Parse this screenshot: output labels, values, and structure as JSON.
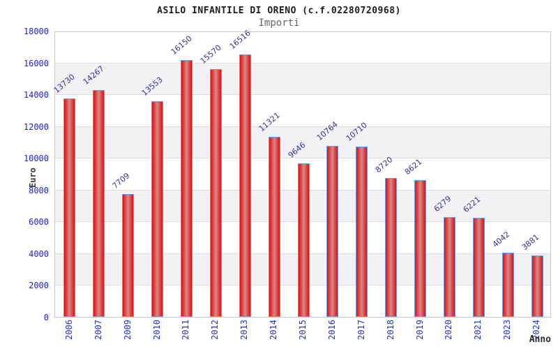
{
  "chart_data": {
    "type": "bar",
    "title": "ASILO INFANTILE DI ORENO (c.f.02280720968)",
    "subtitle": "Importi",
    "xlabel": "Anno",
    "ylabel": "Euro",
    "categories": [
      "2006",
      "2007",
      "2009",
      "2010",
      "2011",
      "2012",
      "2013",
      "2014",
      "2015",
      "2016",
      "2017",
      "2018",
      "2019",
      "2020",
      "2021",
      "2023",
      "2024"
    ],
    "values": [
      13730,
      14267,
      7709,
      13553,
      16150,
      15570,
      16516,
      11321,
      9646,
      10764,
      10710,
      8720,
      8621,
      6279,
      6221,
      4042,
      3881
    ],
    "ylim": [
      0,
      18000
    ],
    "ytick_interval": 2000,
    "yticks": [
      0,
      2000,
      4000,
      6000,
      8000,
      10000,
      12000,
      14000,
      16000,
      18000
    ],
    "grid": true,
    "legend": "none",
    "colors": {
      "bar_fill": "#e63434",
      "bar_center_sheen": "#cf8d8d",
      "bar_border": "#69a0e8",
      "value_label": "#333399",
      "axis_tick_label": "#2222cc",
      "title": "#1c1c1c",
      "subtitle": "#666666",
      "band": "#f2f2f4",
      "gridline": "#dedede",
      "plot_border": "#c9c9c9"
    }
  }
}
